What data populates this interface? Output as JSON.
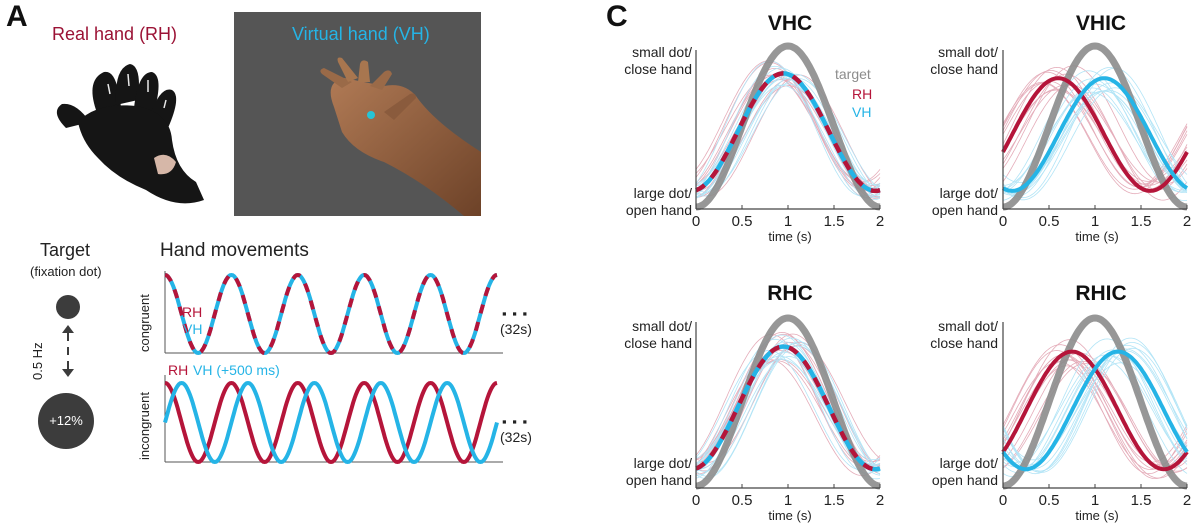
{
  "panel_a": {
    "letter": "A",
    "real_hand_label": "Real hand (RH)",
    "virtual_hand_label": "Virtual hand (VH)",
    "target_title": "Target",
    "target_sub": "(fixation dot)",
    "freq_label": "0.5 Hz",
    "dot_change_label": "+12%",
    "hand_movements_title": "Hand movements",
    "congruent": {
      "ylabel": "congruent",
      "rh_label": "RH",
      "vh_label": "VH",
      "duration": "(32s)",
      "ellipsis": "▪ ▪ ▪"
    },
    "incongruent": {
      "ylabel": "incongruent",
      "rh_label": "RH",
      "vh_label": "VH (+500 ms)",
      "duration": "(32s)",
      "ellipsis": "▪ ▪ ▪"
    },
    "colors": {
      "rh": "#b5153a",
      "vh": "#25b4e6",
      "photo_bg": "#555555",
      "dot": "#3c3c3c"
    }
  },
  "panel_c": {
    "letter": "C",
    "legend": {
      "target": "target",
      "rh": "RH",
      "vh": "VH"
    },
    "colors": {
      "target": "#8c8c8c",
      "rh": "#b5153a",
      "vh": "#25b4e6"
    }
  },
  "chart_data": [
    {
      "type": "line",
      "title": "VHC",
      "xlabel": "time (s)",
      "ytick_labels": [
        "small dot/\nclose hand",
        "large dot/\nopen hand"
      ],
      "xticks": [
        0,
        0.5,
        1,
        1.5,
        2
      ],
      "xlim": [
        0,
        2
      ],
      "ylim": [
        0,
        1
      ],
      "series": [
        {
          "name": "target",
          "peak_time": 1.0,
          "peak": 1.0,
          "trough": 0.0
        },
        {
          "name": "RH",
          "peak_time": 0.95,
          "peak": 0.83,
          "trough": 0.1
        },
        {
          "name": "VH",
          "peak_time": 0.95,
          "peak": 0.83,
          "trough": 0.1
        }
      ]
    },
    {
      "type": "line",
      "title": "VHIC",
      "xlabel": "time (s)",
      "ytick_labels": [
        "small dot/\nclose hand",
        "large dot/\nopen hand"
      ],
      "xticks": [
        0,
        0.5,
        1,
        1.5,
        2
      ],
      "xlim": [
        0,
        2
      ],
      "ylim": [
        0,
        1
      ],
      "series": [
        {
          "name": "target",
          "peak_time": 1.0,
          "peak": 1.0,
          "trough": 0.0
        },
        {
          "name": "RH",
          "peak_time": 0.6,
          "peak": 0.8,
          "trough": 0.1
        },
        {
          "name": "VH",
          "peak_time": 1.1,
          "peak": 0.8,
          "trough": 0.1
        }
      ]
    },
    {
      "type": "line",
      "title": "RHC",
      "xlabel": "time (s)",
      "ytick_labels": [
        "small dot/\nclose hand",
        "large dot/\nopen hand"
      ],
      "xticks": [
        0,
        0.5,
        1,
        1.5,
        2
      ],
      "xlim": [
        0,
        2
      ],
      "ylim": [
        0,
        1
      ],
      "series": [
        {
          "name": "target",
          "peak_time": 1.0,
          "peak": 1.0,
          "trough": 0.0
        },
        {
          "name": "RH",
          "peak_time": 0.95,
          "peak": 0.83,
          "trough": 0.1
        },
        {
          "name": "VH",
          "peak_time": 0.95,
          "peak": 0.83,
          "trough": 0.1
        }
      ]
    },
    {
      "type": "line",
      "title": "RHIC",
      "xlabel": "time (s)",
      "ytick_labels": [
        "small dot/\nclose hand",
        "large dot/\nopen hand"
      ],
      "xticks": [
        0,
        0.5,
        1,
        1.5,
        2
      ],
      "xlim": [
        0,
        2
      ],
      "ylim": [
        0,
        1
      ],
      "series": [
        {
          "name": "target",
          "peak_time": 1.0,
          "peak": 1.0,
          "trough": 0.0
        },
        {
          "name": "RH",
          "peak_time": 0.75,
          "peak": 0.8,
          "trough": 0.1
        },
        {
          "name": "VH",
          "peak_time": 1.25,
          "peak": 0.8,
          "trough": 0.1
        }
      ]
    }
  ]
}
